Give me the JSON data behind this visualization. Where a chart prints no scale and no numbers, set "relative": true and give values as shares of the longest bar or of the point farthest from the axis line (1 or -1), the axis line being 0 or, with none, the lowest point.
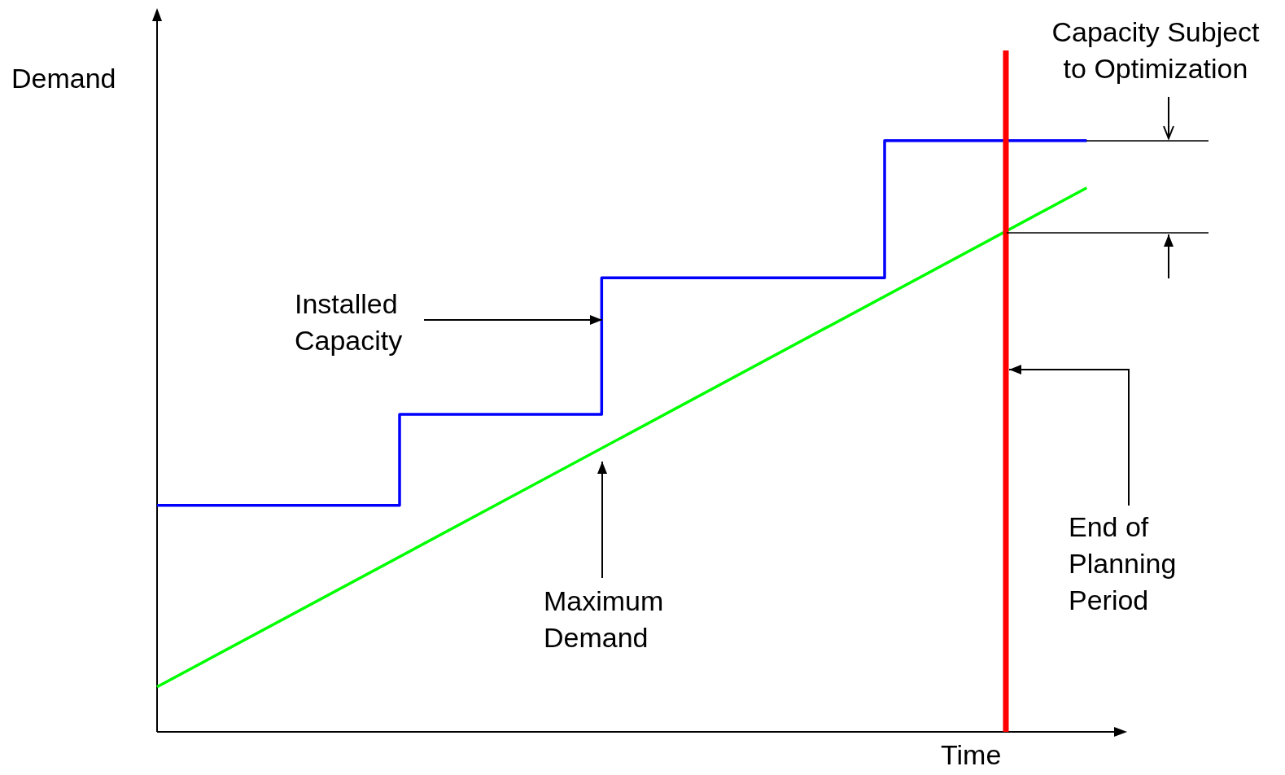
{
  "chart_data": {
    "type": "line",
    "relative": true,
    "xlabel": "Time",
    "ylabel": "Demand",
    "categories": [
      null,
      null,
      null,
      null,
      null,
      null,
      null,
      null,
      null,
      null,
      null,
      null,
      null,
      null,
      null,
      null,
      null,
      null,
      null,
      null,
      null,
      null,
      null,
      null,
      null
    ],
    "series": [
      {
        "type": "step",
        "color": "#0000ff",
        "values": [
          0.383,
          0.383,
          0.383,
          0.383,
          0.383,
          0.383,
          0.537,
          0.537,
          0.537,
          0.537,
          0.537,
          0.768,
          0.768,
          0.768,
          0.768,
          0.768,
          0.768,
          0.768,
          1.0,
          1.0,
          1.0,
          1.0,
          1.0,
          1.0,
          null
        ]
      },
      {
        "color": "#00ff00",
        "values": [
          0.076,
          null,
          null,
          null,
          null,
          null,
          null,
          null,
          null,
          null,
          null,
          null,
          null,
          null,
          null,
          null,
          null,
          null,
          null,
          null,
          null,
          null,
          null,
          0.92,
          null
        ]
      }
    ],
    "annotations": [
      "Installed Capacity",
      "Maximum Demand",
      "Capacity Subject to Optimization",
      "End of Planning Period"
    ],
    "legend": false,
    "marker": "none"
  }
}
